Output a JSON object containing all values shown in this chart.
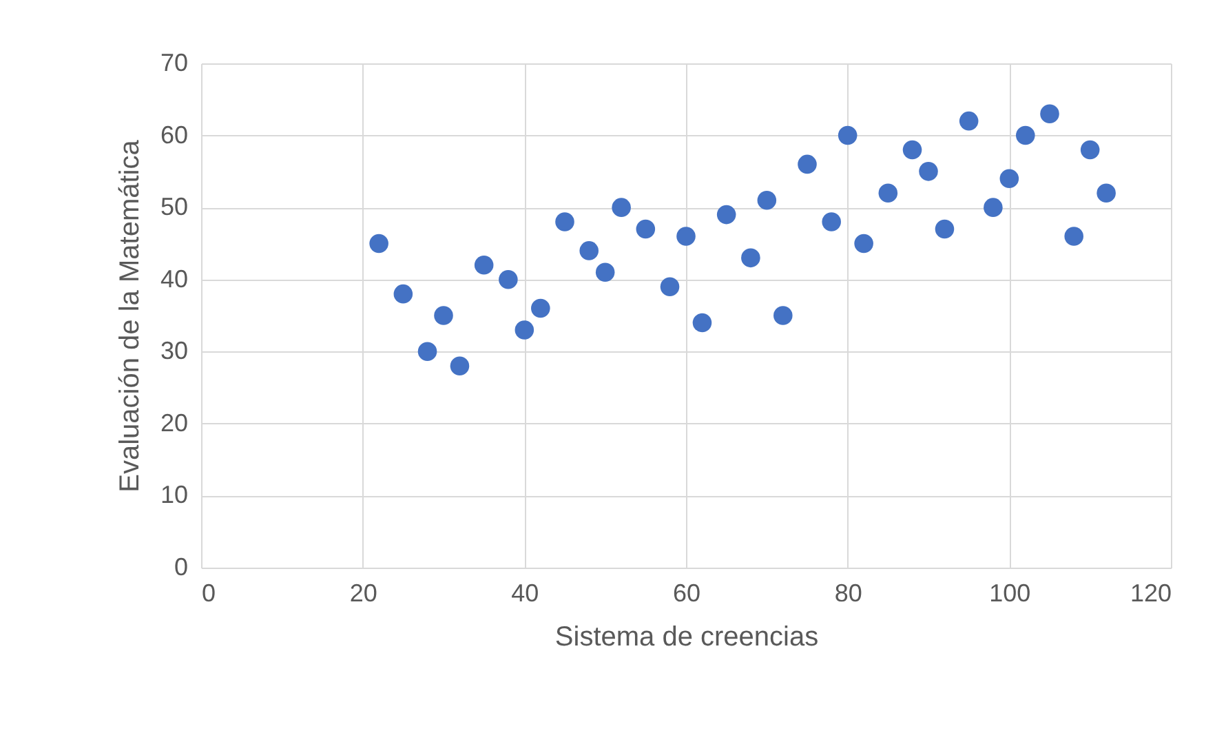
{
  "chart_data": {
    "type": "scatter",
    "xlabel": "Sistema de creencias",
    "ylabel": "Evaluación de la Matemática",
    "x": [
      22,
      25,
      28,
      30,
      32,
      35,
      38,
      40,
      42,
      45,
      48,
      50,
      52,
      55,
      58,
      60,
      62,
      65,
      68,
      70,
      72,
      75,
      78,
      80,
      82,
      85,
      88,
      90,
      92,
      95,
      98,
      100,
      102,
      105,
      108,
      110,
      112
    ],
    "values": [
      45,
      38,
      30,
      35,
      28,
      42,
      40,
      33,
      36,
      48,
      44,
      41,
      50,
      47,
      39,
      46,
      34,
      49,
      43,
      51,
      35,
      56,
      48,
      60,
      45,
      52,
      58,
      55,
      47,
      62,
      50,
      54,
      60,
      63,
      46,
      58,
      52
    ],
    "color": "#4472c4",
    "marker": "circle",
    "xlim": [
      0,
      120
    ],
    "xticks": [
      0,
      20,
      40,
      60,
      80,
      100,
      120
    ],
    "ylim": [
      0,
      70
    ],
    "yticks": [
      0,
      10,
      20,
      30,
      40,
      50,
      60,
      70
    ],
    "grid": true
  }
}
